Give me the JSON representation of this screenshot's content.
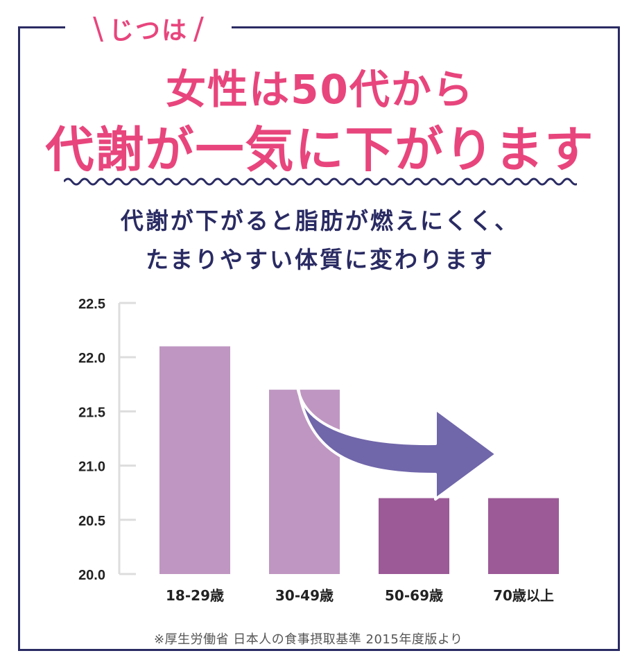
{
  "header": {
    "tagline": "じつは",
    "headline_line1": "女性は50代から",
    "headline_line2": "代謝が一気に下がります"
  },
  "subtitle": {
    "line1": "代謝が下がると脂肪が燃えにくく、",
    "line2": "たまりやすい体質に変わります"
  },
  "chart_data": {
    "type": "bar",
    "categories": [
      "18-29歳",
      "30-49歳",
      "50-69歳",
      "70歳以上"
    ],
    "values": [
      22.1,
      21.7,
      20.7,
      20.7
    ],
    "ylim": [
      20.0,
      22.5
    ],
    "yticks": [
      "20.0",
      "20.5",
      "21.0",
      "21.5",
      "22.0",
      "22.5"
    ],
    "title": "",
    "xlabel": "",
    "ylabel": "",
    "grid": false,
    "colors": [
      "#bf96c1",
      "#bf96c1",
      "#9c5a97",
      "#9c5a97"
    ],
    "arrow_color": "#7066aa"
  },
  "source_note": "※厚生労働省 日本人の食事摂取基準 2015年度版より",
  "colors": {
    "accent": "#e8457d",
    "navy": "#2a2b63"
  }
}
